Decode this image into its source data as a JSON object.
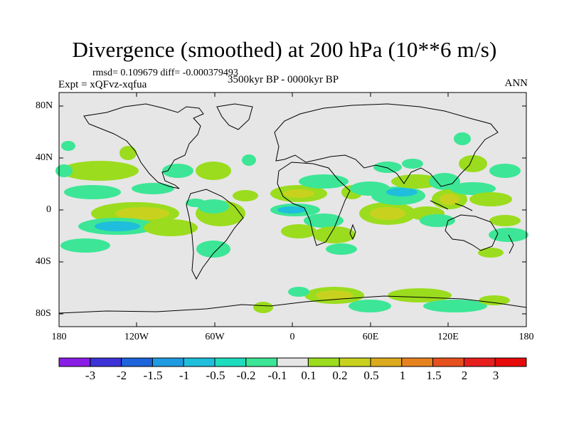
{
  "header": {
    "title": "Divergence (smoothed) at 200 hPa (10**6 m/s)",
    "stats": "rmsd= 0.109679 diff= -0.000379493",
    "experiment": "Expt = xQFvz-xqfua",
    "period": "3500kyr BP - 0000kyr BP",
    "season": "ANN"
  },
  "axes": {
    "lat_labels": [
      "80N",
      "40N",
      "0",
      "40S",
      "80S"
    ],
    "lon_labels": [
      "180",
      "120W",
      "60W",
      "0",
      "60E",
      "120E",
      "180"
    ]
  },
  "colorbar": {
    "labels": [
      "-3",
      "-2",
      "-1.5",
      "-1",
      "-0.5",
      "-0.2",
      "-0.1",
      "0.1",
      "0.2",
      "0.5",
      "1",
      "1.5",
      "2",
      "3"
    ],
    "colors": [
      "#8a1ee6",
      "#3c32d8",
      "#1e64dc",
      "#1e9be1",
      "#1ebedc",
      "#1edcbe",
      "#3ce696",
      "#e6e6e6",
      "#9bdc1e",
      "#c8d21e",
      "#dcaa1e",
      "#e6821e",
      "#e6501e",
      "#e61e1e",
      "#e60a0a"
    ]
  },
  "colors": {
    "background": "#e6e6e6",
    "negative_light": "#3ce696",
    "negative_mid": "#1ebedc",
    "positive_light": "#9bdc1e",
    "positive_mid": "#c8d21e"
  }
}
